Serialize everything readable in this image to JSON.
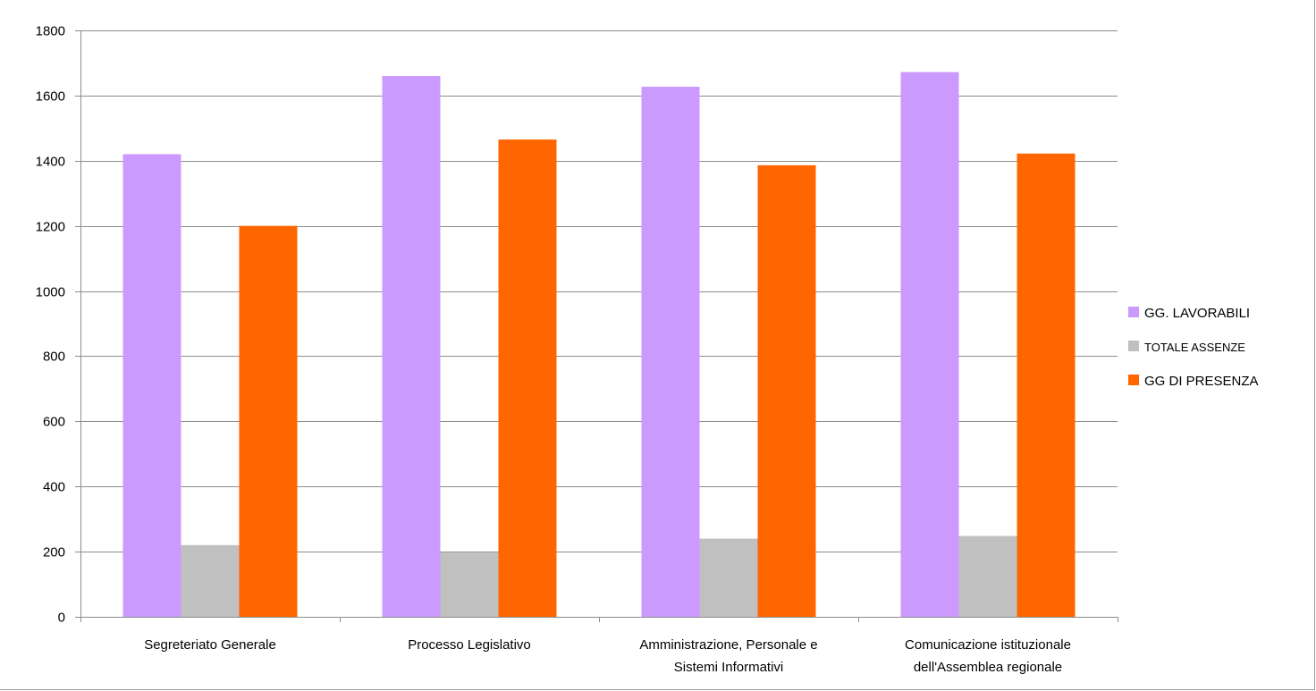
{
  "chart_data": {
    "type": "bar",
    "categories": [
      [
        "Segreteriato Generale"
      ],
      [
        "Processo Legislativo"
      ],
      [
        "Amministrazione, Personale e",
        "Sistemi Informativi"
      ],
      [
        "Comunicazione istituzionale",
        "dell'Assemblea regionale"
      ]
    ],
    "series": [
      {
        "name": "GG. LAVORABILI",
        "color": "#cc99ff",
        "values": [
          1420,
          1660,
          1627,
          1672
        ]
      },
      {
        "name": "TOTALE ASSENZE",
        "color": "#c0c0c0",
        "values": [
          220,
          197,
          240,
          248
        ]
      },
      {
        "name": "GG DI PRESENZA",
        "color": "#ff6600",
        "values": [
          1200,
          1465,
          1386,
          1422
        ]
      }
    ],
    "ylim": [
      0,
      1800
    ],
    "yticks": [
      0,
      200,
      400,
      600,
      800,
      1000,
      1200,
      1400,
      1600,
      1800
    ],
    "grid": true,
    "legend_position": "right",
    "title": "",
    "xlabel": "",
    "ylabel": ""
  }
}
